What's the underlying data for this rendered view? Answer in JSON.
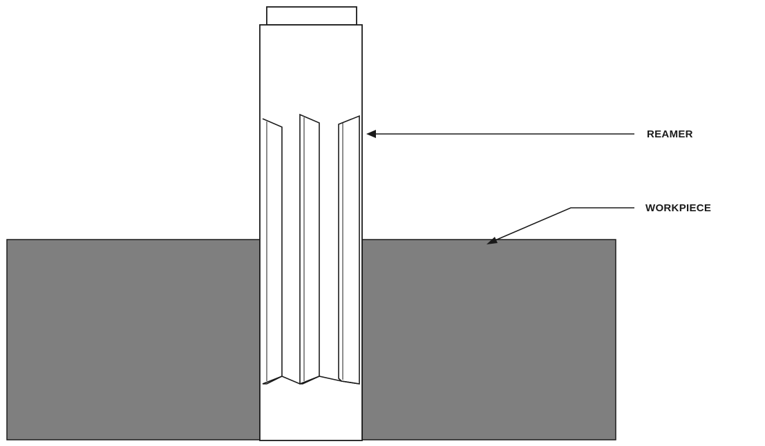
{
  "labels": {
    "reamer": "REAMER",
    "workpiece": "WORKPIECE"
  },
  "colors": {
    "workpiece_fill": "#7f7f7f",
    "outline": "#1a1a1a",
    "reamer_fill": "#ffffff",
    "label_text": "#1a1a1a"
  }
}
